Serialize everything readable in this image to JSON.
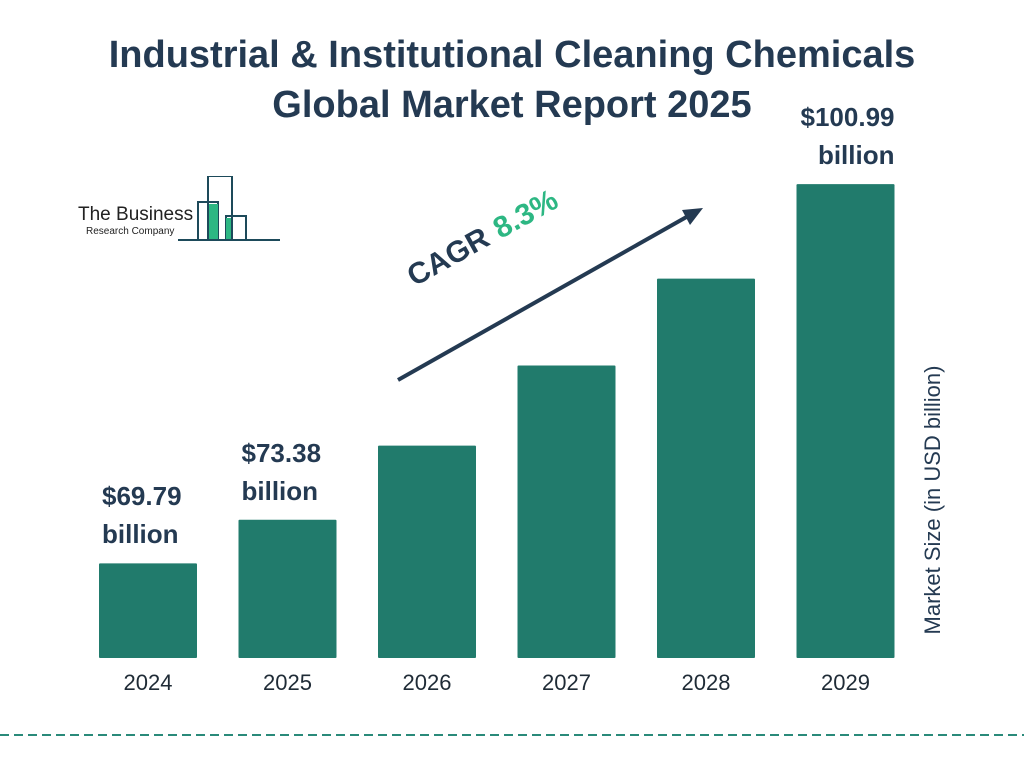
{
  "title_line1": "Industrial & Institutional Cleaning Chemicals",
  "title_line2": "Global Market Report 2025",
  "logo": {
    "line1": "The Business",
    "line2": "Research Company"
  },
  "cagr": {
    "label": "CAGR",
    "value": "8.3%"
  },
  "colors": {
    "bar": "#217b6c",
    "text": "#243a52",
    "accent": "#2db783",
    "divider": "#2a8a7a"
  },
  "chart_data": {
    "type": "bar",
    "title": "Industrial & Institutional Cleaning Chemicals Global Market Report 2025",
    "xlabel": "",
    "ylabel": "Market Size (in USD billion)",
    "categories": [
      "2024",
      "2025",
      "2026",
      "2027",
      "2028",
      "2029"
    ],
    "values": [
      69.79,
      73.38,
      79.47,
      86.07,
      93.21,
      100.99
    ],
    "data_labels": [
      {
        "index": 0,
        "line1": "$69.79",
        "line2": "billion"
      },
      {
        "index": 1,
        "line1": "$73.38",
        "line2": "billion"
      },
      {
        "index": 5,
        "line1": "$100.99",
        "line2": "billion"
      }
    ],
    "ylim": [
      62,
      101
    ],
    "grid": false,
    "legend": "none"
  }
}
